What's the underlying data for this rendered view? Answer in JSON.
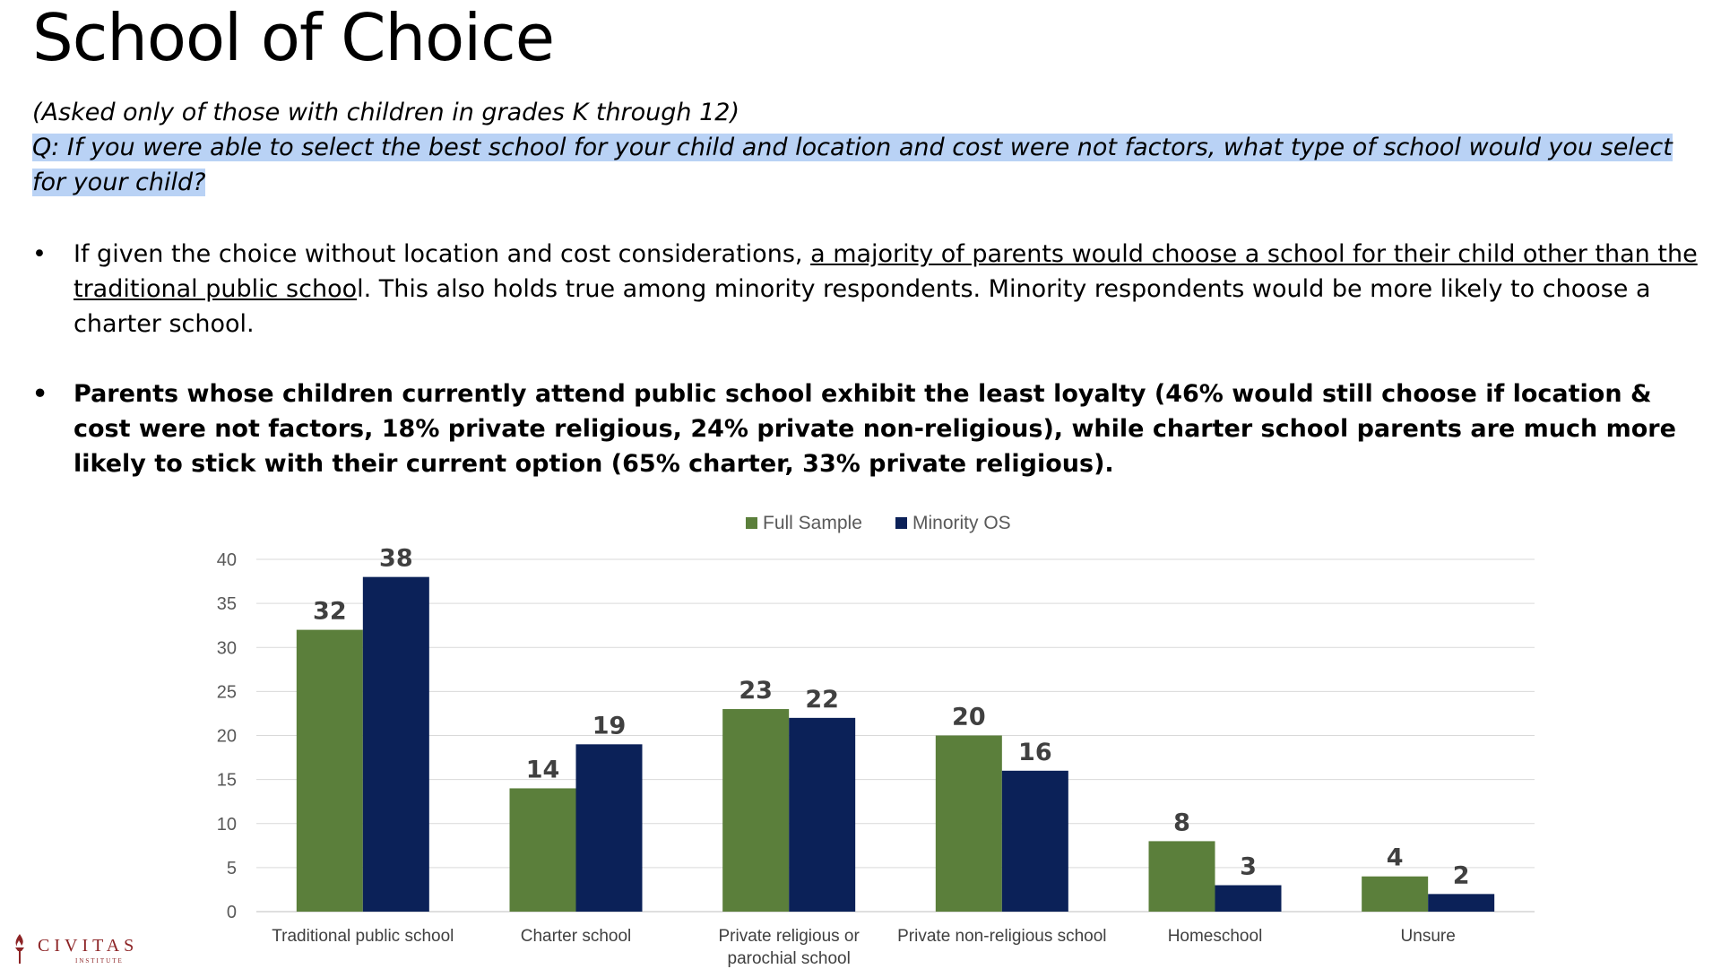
{
  "slide": {
    "title": "School of Choice",
    "intro_line": "(Asked only of those with children in grades K through 12)",
    "question": "Q: If you were able to select the best school for your child and location and cost were not factors, what type of school would you select for your child?",
    "bullet_symbol": "•",
    "bullet1": {
      "pre": "If given the choice without location and cost considerations, ",
      "underlined": "a majority of parents would choose a school for their child other than the traditional public schoo",
      "post": "l. This also holds true among minority respondents. Minority respondents would be more likely to choose a charter school."
    },
    "bullet2": "Parents whose children currently attend public school exhibit the least loyalty (46% would still choose if location & cost were not factors, 18% private religious, 24% private non-religious), while charter school parents are much more likely to stick with their current option (65% charter, 33% private religious).",
    "logo": {
      "name": "CIVITAS",
      "sub": "INSTITUTE",
      "icon": "torch-icon",
      "color": "#8c2325"
    }
  },
  "chart_data": {
    "type": "bar",
    "categories": [
      [
        "Traditional public school"
      ],
      [
        "Charter school"
      ],
      [
        "Private religious or",
        "parochial school"
      ],
      [
        "Private non-religious school"
      ],
      [
        "Homeschool"
      ],
      [
        "Unsure"
      ]
    ],
    "series": [
      {
        "name": "Full Sample",
        "color": "#5b7f3b",
        "values": [
          32,
          14,
          23,
          20,
          8,
          4
        ]
      },
      {
        "name": "Minority OS",
        "color": "#0b2158",
        "values": [
          38,
          19,
          22,
          16,
          3,
          2
        ]
      }
    ],
    "yticks": [
      0,
      5,
      10,
      15,
      20,
      25,
      30,
      35,
      40
    ],
    "ylim": [
      0,
      40
    ],
    "grid": true,
    "legend_position": "top-center",
    "data_labels": true,
    "title": "",
    "xlabel": "",
    "ylabel": ""
  }
}
